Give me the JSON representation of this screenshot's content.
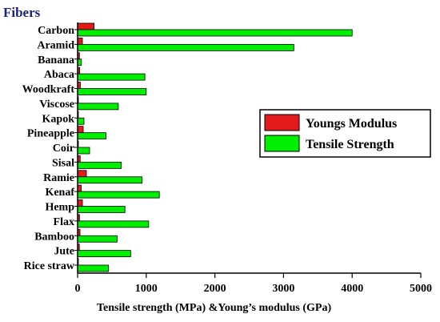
{
  "chart_data": {
    "type": "bar",
    "orientation": "horizontal",
    "title": "Fibers",
    "xlabel": "Tensile strength (MPa) &Young’s modulus (GPa)",
    "ylabel": "",
    "xlim": [
      0,
      5000
    ],
    "xticks": [
      0,
      1000,
      2000,
      3000,
      4000,
      5000
    ],
    "categories": [
      "Carbon",
      "Aramid",
      "Banana",
      "Abaca",
      "Woodkraft",
      "Viscose",
      "Kapok",
      "Pineapple",
      "Coir",
      "Sisal",
      "Ramie",
      "Kenaf",
      "Hemp",
      "Flax",
      "Bamboo",
      "Jute",
      "Rice straw"
    ],
    "series": [
      {
        "name": "Youngs Modulus",
        "color": "#e31a1c",
        "values": [
          240,
          70,
          27,
          30,
          40,
          11,
          4,
          82,
          6,
          38,
          128,
          53,
          70,
          28,
          35,
          26,
          6
        ]
      },
      {
        "name": "Tensile Strength",
        "color": "#00ee00",
        "values": [
          4000,
          3150,
          55,
          980,
          1000,
          593,
          93,
          413,
          175,
          635,
          938,
          1191,
          690,
          1035,
          575,
          773,
          450
        ]
      }
    ],
    "legend": {
      "position": "right"
    },
    "grid": false
  }
}
